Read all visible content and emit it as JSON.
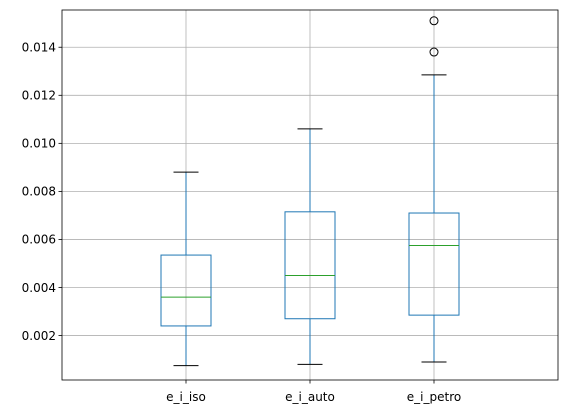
{
  "chart_data": {
    "type": "box",
    "title": "",
    "xlabel": "",
    "ylabel": "",
    "grid": true,
    "categories": [
      "e_i_iso",
      "e_i_auto",
      "e_i_petro"
    ],
    "ylim": [
      0.00015,
      0.01555
    ],
    "yticks": [
      0.002,
      0.004,
      0.006,
      0.008,
      0.01,
      0.012,
      0.014
    ],
    "ytick_labels": [
      "0.002",
      "0.004",
      "0.006",
      "0.008",
      "0.010",
      "0.012",
      "0.014"
    ],
    "boxes": [
      {
        "category": "e_i_iso",
        "whisker_low": 0.00075,
        "q1": 0.0024,
        "median": 0.0036,
        "q3": 0.00535,
        "whisker_high": 0.0088,
        "outliers": []
      },
      {
        "category": "e_i_auto",
        "whisker_low": 0.0008,
        "q1": 0.0027,
        "median": 0.0045,
        "q3": 0.00715,
        "whisker_high": 0.0106,
        "outliers": []
      },
      {
        "category": "e_i_petro",
        "whisker_low": 0.0009,
        "q1": 0.00285,
        "median": 0.00575,
        "q3": 0.0071,
        "whisker_high": 0.01285,
        "outliers": [
          0.0138,
          0.0151
        ]
      }
    ],
    "colors": {
      "box": "#1f77b4",
      "median": "#2ca02c",
      "whisker": "#1f77b4",
      "cap": "#000000",
      "outlier": "#000000",
      "grid": "#b0b0b0"
    }
  }
}
